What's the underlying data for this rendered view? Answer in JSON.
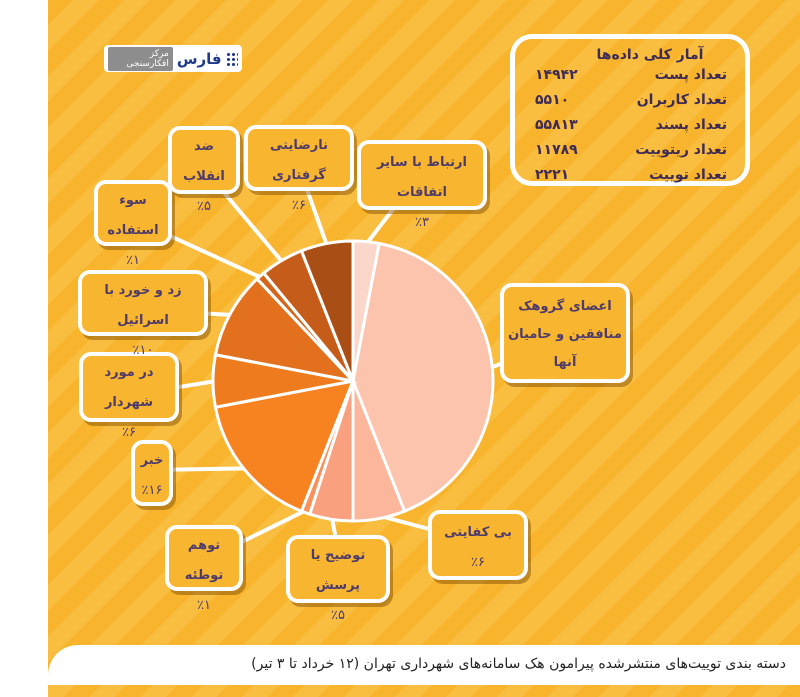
{
  "logo": {
    "name": "فارس",
    "tag": "مرکز افکارسنجی"
  },
  "stats": {
    "title": "آمار کلی داده‌ها",
    "rows": [
      {
        "label": "تعداد پست",
        "value": "۱۴۹۴۲"
      },
      {
        "label": "تعداد کاربران",
        "value": "۵۵۱۰"
      },
      {
        "label": "تعداد پسند",
        "value": "۵۵۸۱۳"
      },
      {
        "label": "تعداد ریتوییت",
        "value": "۱۱۷۸۹"
      },
      {
        "label": "تعداد توییت",
        "value": "۲۲۲۱"
      }
    ]
  },
  "caption": "دسته بندی توییت‌های منتشرشده پیرامون هک سامانه‌های شهرداری تهران  (۱۲ خرداد تا ۳ تیر)",
  "chart_data": {
    "type": "pie",
    "title": "",
    "slices": [
      {
        "label": "ارتباط با سایر اتفاقات",
        "value": 3,
        "pct_label": "٪۳",
        "color": "#fbd6cb"
      },
      {
        "label": "اعضای گروهک منافقین و حامیان آنها",
        "value": 41,
        "pct_label": "",
        "color": "#fcc4ad"
      },
      {
        "label": "بی کفایتی",
        "value": 6,
        "pct_label": "٪۶",
        "color": "#fcb69c"
      },
      {
        "label": "توضیح یا پرسش",
        "value": 5,
        "pct_label": "٪۵",
        "color": "#f9a17f"
      },
      {
        "label": "توهم توطئه",
        "value": 1,
        "pct_label": "٪۱",
        "color": "#f7925c"
      },
      {
        "label": "خبر",
        "value": 16,
        "pct_label": "٪۱۶",
        "color": "#f68220"
      },
      {
        "label": "در مورد شهردار",
        "value": 6,
        "pct_label": "٪۶",
        "color": "#ef7b1f"
      },
      {
        "label": "زد و خورد با اسرائیل",
        "value": 10,
        "pct_label": "٪۱۰",
        "color": "#e2701d"
      },
      {
        "label": "سوء استفاده",
        "value": 1,
        "pct_label": "٪۱",
        "color": "#d4661b"
      },
      {
        "label": "ضد انقلاب",
        "value": 5,
        "pct_label": "٪۵",
        "color": "#c55c19"
      },
      {
        "label": "نارضایتی گرفتاری",
        "value": 6,
        "pct_label": "٪۶",
        "color": "#a94f15"
      }
    ]
  }
}
